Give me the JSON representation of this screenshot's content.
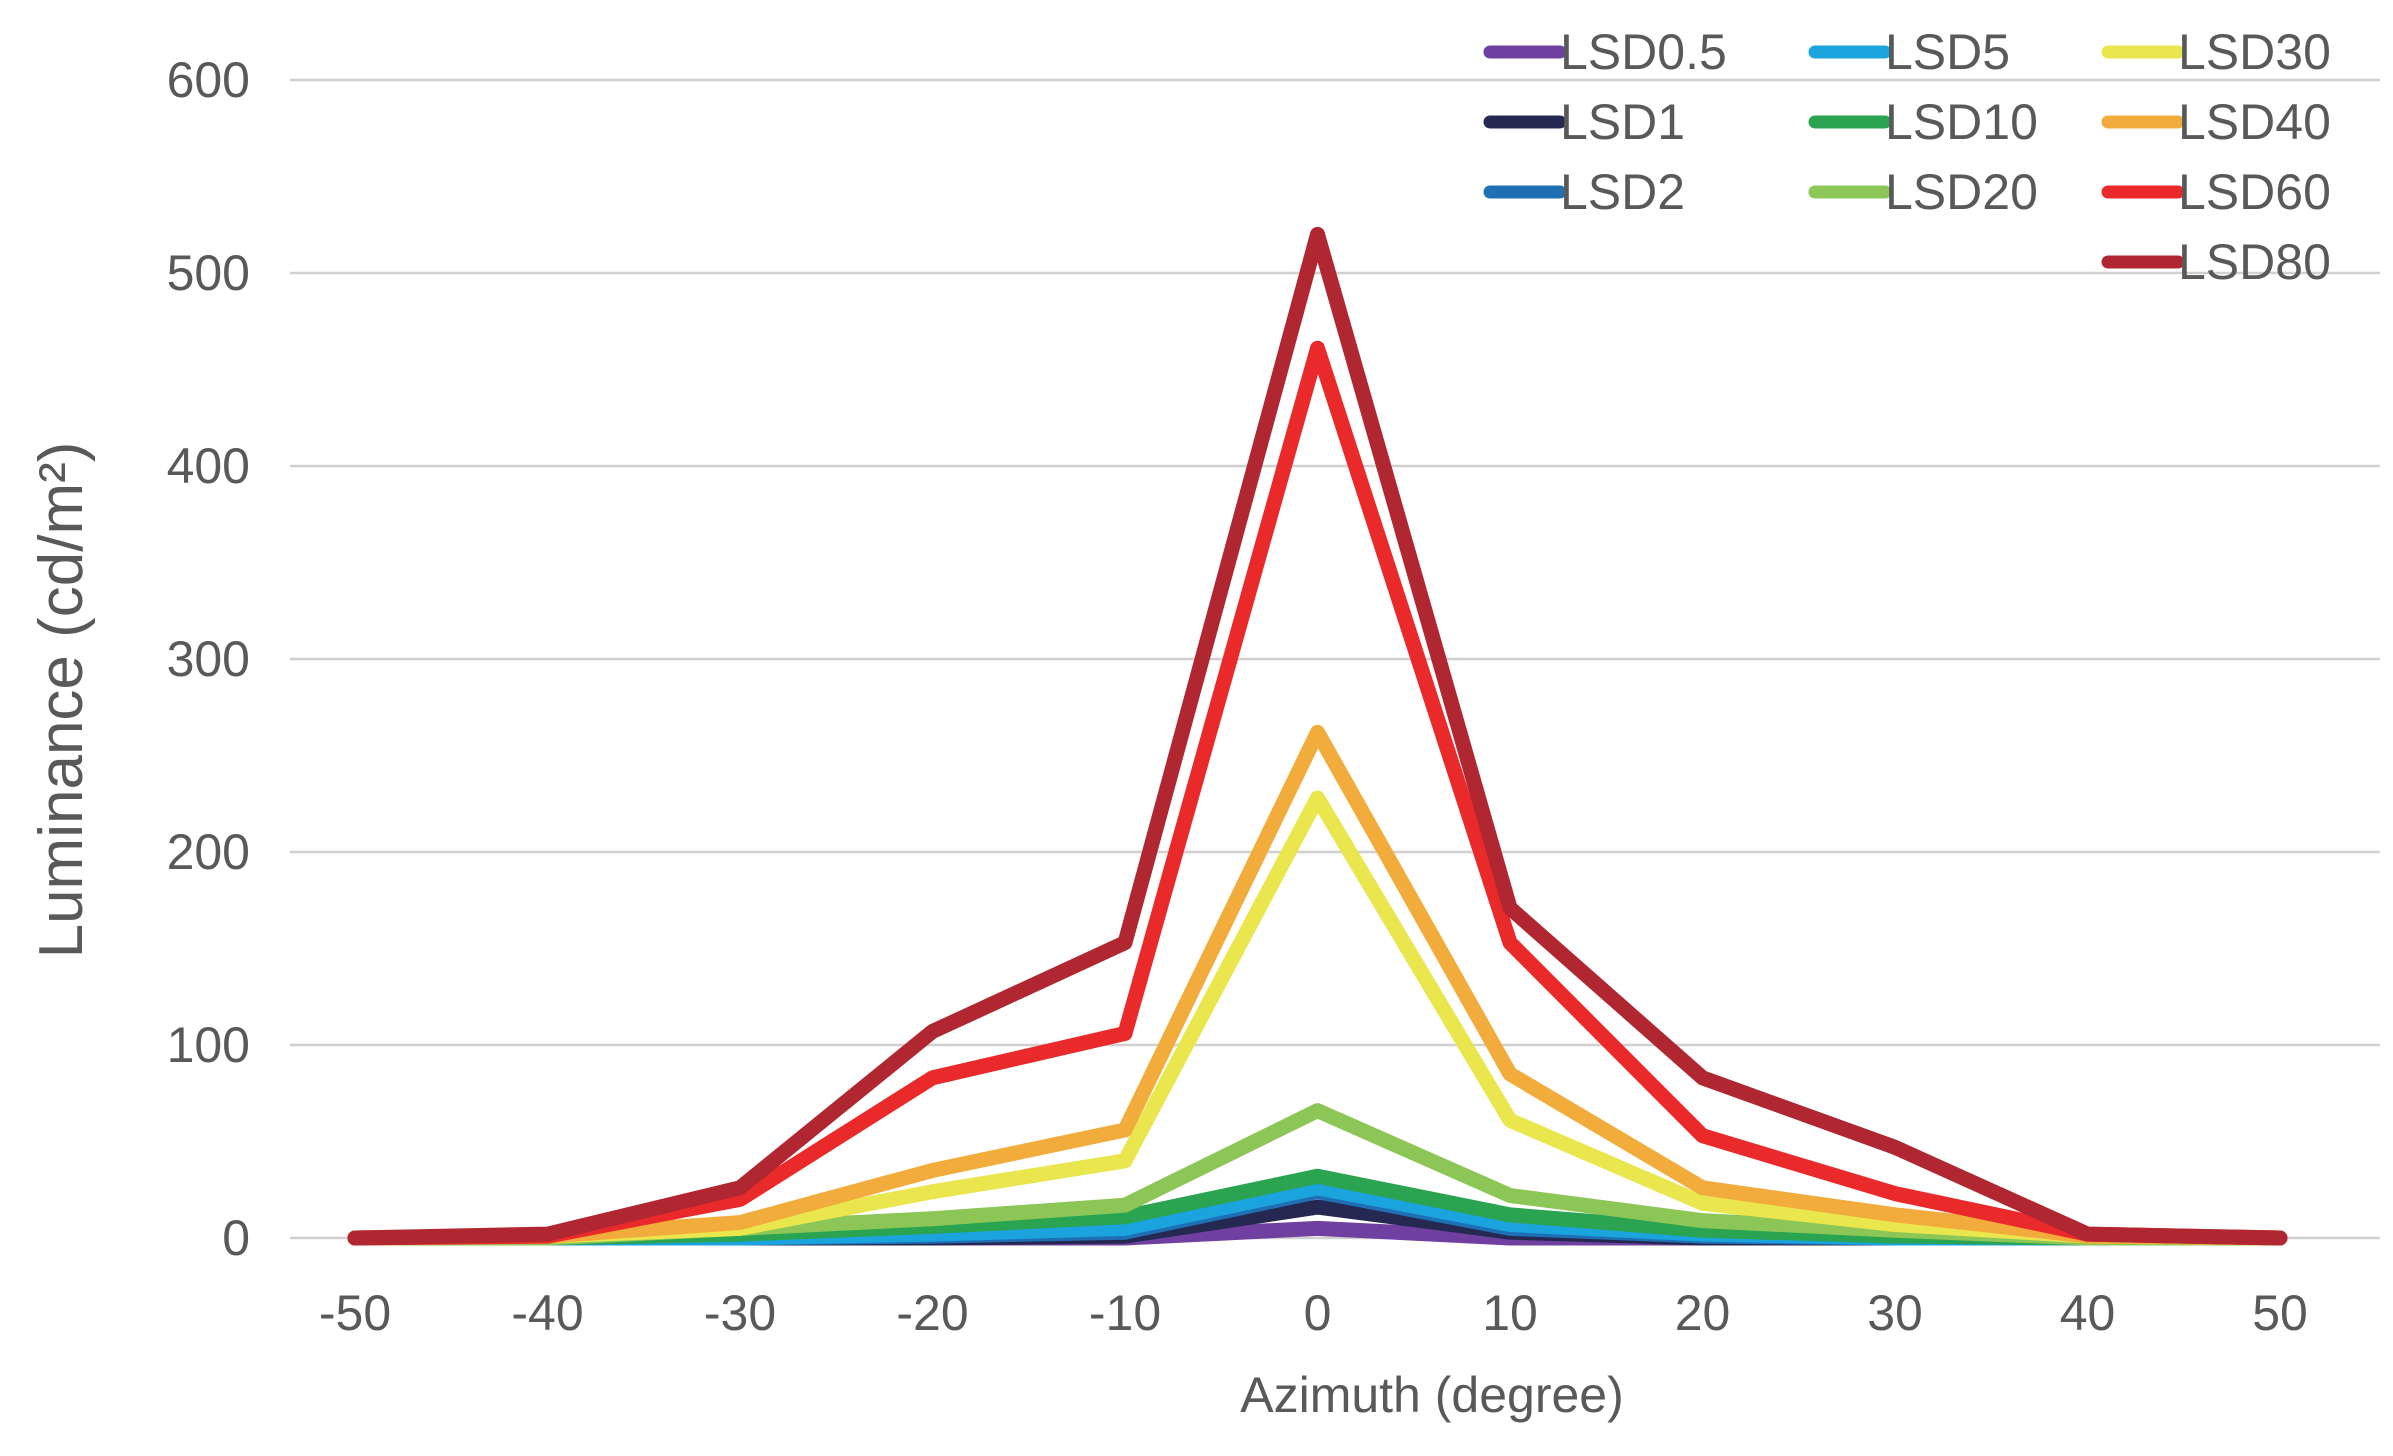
{
  "chart_data": {
    "type": "line",
    "title": "",
    "xlabel": "Azimuth (degree)",
    "ylabel": "Luminance (cd/m²)",
    "x": [
      -50,
      -40,
      -30,
      -20,
      -10,
      0,
      10,
      20,
      30,
      40,
      50
    ],
    "xlim": [
      -55,
      55
    ],
    "ylim": [
      0,
      600
    ],
    "yticks": [
      0,
      100,
      200,
      300,
      400,
      500,
      600
    ],
    "xticks": [
      -50,
      -40,
      -30,
      -20,
      -10,
      0,
      10,
      20,
      30,
      40,
      50
    ],
    "grid": true,
    "legend_position": "top-right",
    "series": [
      {
        "name": "LSD0.5",
        "color": "#7040a0",
        "values": [
          0,
          0,
          0,
          0,
          0,
          5,
          0,
          0,
          0,
          0,
          0
        ]
      },
      {
        "name": "LSD1",
        "color": "#252850",
        "values": [
          0,
          0,
          0,
          0,
          1,
          16,
          3,
          0,
          0,
          0,
          0
        ]
      },
      {
        "name": "LSD2",
        "color": "#1f6fb5",
        "values": [
          0,
          0,
          0,
          1,
          3,
          24,
          5,
          1,
          0,
          0,
          0
        ]
      },
      {
        "name": "LSD5",
        "color": "#1aa3dd",
        "values": [
          0,
          0,
          0,
          2,
          5,
          26,
          7,
          2,
          0,
          0,
          0
        ]
      },
      {
        "name": "LSD10",
        "color": "#2aa450",
        "values": [
          0,
          0,
          2,
          6,
          11,
          32,
          12,
          4,
          1,
          0,
          0
        ]
      },
      {
        "name": "LSD20",
        "color": "#8cc657",
        "values": [
          0,
          0,
          5,
          10,
          17,
          66,
          22,
          9,
          4,
          0,
          0
        ]
      },
      {
        "name": "LSD30",
        "color": "#e9e64e",
        "values": [
          0,
          1,
          5,
          24,
          40,
          228,
          61,
          18,
          7,
          1,
          0
        ]
      },
      {
        "name": "LSD40",
        "color": "#f1ac3b",
        "values": [
          0,
          1,
          8,
          35,
          56,
          262,
          85,
          26,
          12,
          1,
          0
        ]
      },
      {
        "name": "LSD60",
        "color": "#ea2a2a",
        "values": [
          0,
          1,
          20,
          83,
          106,
          461,
          153,
          53,
          23,
          2,
          0
        ]
      },
      {
        "name": "LSD80",
        "color": "#b02631",
        "values": [
          0,
          2,
          26,
          107,
          153,
          520,
          171,
          83,
          47,
          2,
          0
        ]
      }
    ]
  }
}
